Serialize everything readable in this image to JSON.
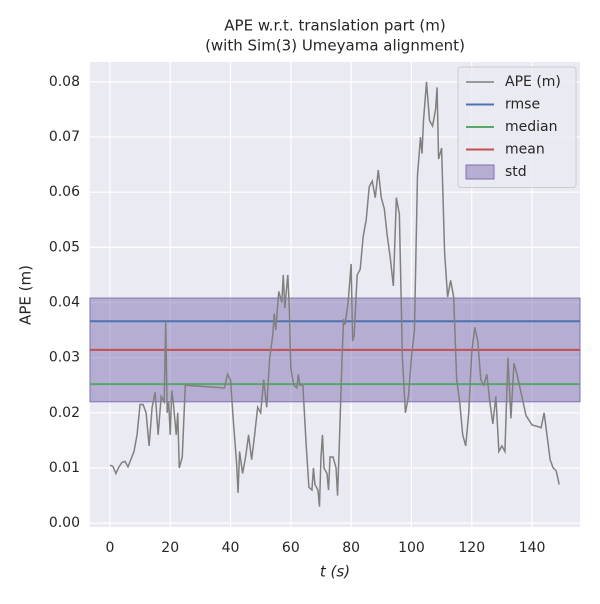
{
  "chart_data": {
    "type": "line",
    "title": [
      "APE w.r.t. translation part (m)",
      "(with Sim(3) Umeyama alignment)"
    ],
    "xlabel": "t (s)",
    "ylabel": "APE (m)",
    "xlim": [
      -6.6,
      155.9
    ],
    "xticks": [
      0,
      20,
      40,
      60,
      80,
      100,
      120,
      140
    ],
    "ylim": [
      -0.0007,
      0.0836
    ],
    "yticks": [
      {
        "value": 0,
        "label": "0.00"
      },
      0.01,
      0.02,
      0.03,
      0.04,
      0.05,
      0.06,
      0.07,
      0.08
    ],
    "grid": true,
    "legend": "upper right",
    "background": "#eaeaf2",
    "series": [
      {
        "name": "APE (m)",
        "color": "#808080",
        "x": [
          0,
          1,
          2,
          3,
          4,
          5,
          6,
          8,
          9,
          10,
          11,
          12,
          13,
          14,
          15,
          16,
          17,
          18,
          18.5,
          19,
          19.5,
          20,
          20.5,
          21,
          22,
          22.5,
          23,
          24,
          25,
          38,
          39,
          40,
          41,
          42,
          42.5,
          43,
          44,
          45,
          46,
          47,
          48,
          49,
          50,
          51,
          52,
          53,
          54,
          54.5,
          55,
          56,
          57,
          57.5,
          58,
          59,
          59.5,
          60,
          61,
          62,
          62.5,
          63,
          64,
          65,
          66,
          67,
          67.5,
          68,
          69,
          69.5,
          70,
          70.5,
          71,
          72,
          72.5,
          73,
          74,
          75,
          75.5,
          76,
          77,
          77.5,
          78,
          79,
          80,
          80.5,
          81,
          82,
          83,
          84,
          85,
          86,
          87,
          88,
          89,
          90,
          91,
          92,
          93,
          94,
          95,
          96,
          97,
          98,
          99,
          100,
          101,
          102,
          103,
          103.5,
          104,
          105,
          106,
          107,
          108,
          108.5,
          109,
          110,
          111,
          112,
          113,
          114,
          115,
          116,
          117,
          118,
          119,
          120,
          121,
          122,
          123,
          124,
          125,
          126,
          127,
          128,
          129,
          130,
          131,
          132,
          133,
          134,
          135,
          138,
          140,
          142,
          143,
          144,
          146,
          147,
          148,
          149
        ],
        "values": [
          0.0105,
          0.0103,
          0.009,
          0.0102,
          0.011,
          0.0112,
          0.0102,
          0.013,
          0.016,
          0.0215,
          0.0215,
          0.02,
          0.014,
          0.021,
          0.0237,
          0.016,
          0.023,
          0.022,
          0.0365,
          0.02,
          0.022,
          0.016,
          0.024,
          0.022,
          0.016,
          0.02,
          0.01,
          0.012,
          0.025,
          0.0245,
          0.027,
          0.026,
          0.018,
          0.011,
          0.0055,
          0.013,
          0.009,
          0.012,
          0.016,
          0.0115,
          0.016,
          0.021,
          0.02,
          0.026,
          0.021,
          0.03,
          0.034,
          0.038,
          0.035,
          0.042,
          0.04,
          0.045,
          0.039,
          0.045,
          0.039,
          0.028,
          0.025,
          0.0245,
          0.027,
          0.025,
          0.025,
          0.015,
          0.0065,
          0.006,
          0.01,
          0.007,
          0.006,
          0.003,
          0.012,
          0.016,
          0.01,
          0.009,
          0.006,
          0.012,
          0.012,
          0.01,
          0.005,
          0.013,
          0.03,
          0.037,
          0.036,
          0.04,
          0.047,
          0.033,
          0.034,
          0.045,
          0.046,
          0.052,
          0.055,
          0.061,
          0.062,
          0.059,
          0.064,
          0.059,
          0.057,
          0.052,
          0.048,
          0.043,
          0.059,
          0.056,
          0.03,
          0.02,
          0.023,
          0.03,
          0.035,
          0.063,
          0.07,
          0.067,
          0.073,
          0.08,
          0.073,
          0.072,
          0.075,
          0.079,
          0.066,
          0.068,
          0.049,
          0.041,
          0.044,
          0.041,
          0.026,
          0.022,
          0.016,
          0.014,
          0.02,
          0.031,
          0.0355,
          0.033,
          0.026,
          0.025,
          0.027,
          0.022,
          0.018,
          0.023,
          0.013,
          0.014,
          0.013,
          0.03,
          0.019,
          0.029,
          0.027,
          0.0195,
          0.0178,
          0.0175,
          0.0173,
          0.02,
          0.0115,
          0.01,
          0.0095,
          0.007
        ]
      }
    ],
    "stats": [
      {
        "name": "rmse",
        "color": "#4c72b0",
        "value": 0.0366
      },
      {
        "name": "median",
        "color": "#55a868",
        "value": 0.0252
      },
      {
        "name": "mean",
        "color": "#c44e52",
        "value": 0.0314
      }
    ],
    "std": {
      "name": "std",
      "color": "#8172b2",
      "value": 0.0094
    }
  }
}
